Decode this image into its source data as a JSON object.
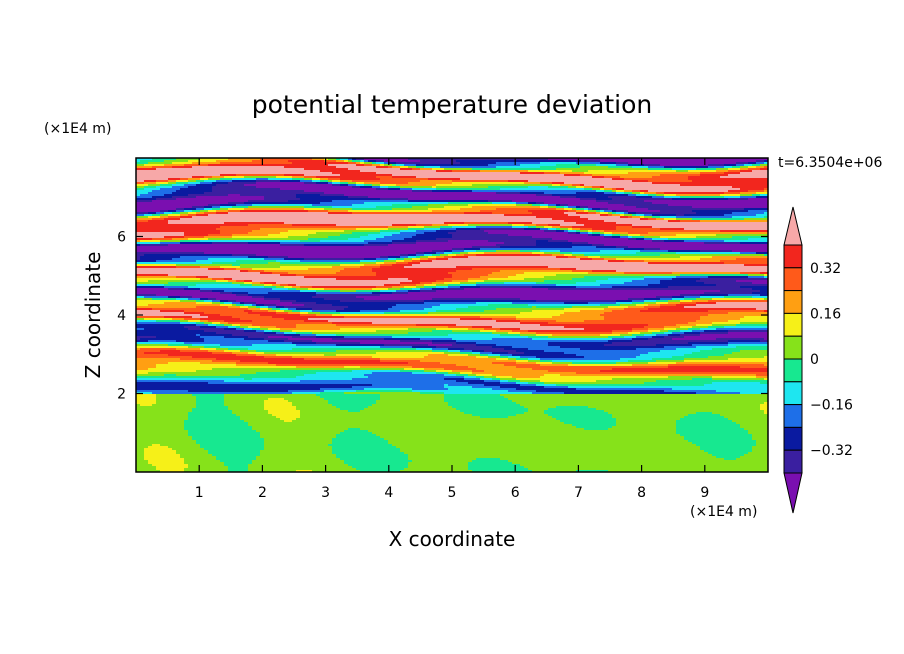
{
  "chart_data": {
    "type": "heatmap",
    "title": "potential temperature deviation",
    "xlabel": "X coordinate",
    "ylabel": "Z coordinate",
    "x_unit": "(×1E4 m)",
    "y_unit": "(×1E4 m)",
    "time_label": "t=6.3504e+06",
    "xlim": [
      0,
      10
    ],
    "ylim": [
      0,
      8
    ],
    "x_ticks": [
      "1",
      "2",
      "3",
      "4",
      "5",
      "6",
      "7",
      "8",
      "9"
    ],
    "y_ticks": [
      "2",
      "4",
      "6"
    ],
    "colorbar": {
      "labels": [
        "0.32",
        "0.16",
        "0",
        "-0.16",
        "-0.32"
      ],
      "levels": [
        -0.4,
        -0.32,
        -0.24,
        -0.16,
        -0.08,
        0,
        0.08,
        0.16,
        0.24,
        0.32,
        0.4
      ],
      "colors": [
        "#7a0fb0",
        "#3a1fa0",
        "#0a1aa0",
        "#1e6fe8",
        "#1ee6f0",
        "#17e890",
        "#86e21a",
        "#f6f018",
        "#ff9f12",
        "#ff5a1a",
        "#f2261e",
        "#f7a8a8"
      ]
    },
    "structure": {
      "lower_layer_top_z": 2.0,
      "stratified_band_z": [
        2.0,
        8.0
      ]
    }
  }
}
